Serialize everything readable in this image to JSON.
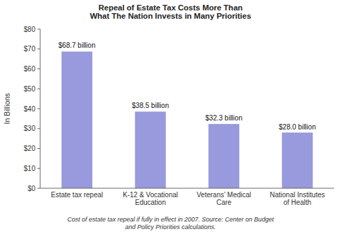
{
  "chart_data": {
    "type": "bar",
    "title": "Repeal of Estate Tax Costs More Than\nWhat The Nation Invests in Many Priorities",
    "categories": [
      "Estate tax repeal",
      "K-12 & Vocational\nEducation",
      "Veterans’ Medical\nCare",
      "National Institutes\nof Health"
    ],
    "values": [
      68.7,
      38.5,
      32.3,
      28.0
    ],
    "value_labels": [
      "$68.7 billion",
      "$38.5 billion",
      "$32.3 billion",
      "$28.0 billion"
    ],
    "data_labels": true,
    "color": "#9999dd",
    "ylabel": "In Billions",
    "ylim": [
      0,
      80
    ],
    "yticks": [
      {
        "value": 0,
        "label": "$0"
      },
      {
        "value": 10,
        "label": "$10"
      },
      {
        "value": 20,
        "label": "$20"
      },
      {
        "value": 30,
        "label": "$30"
      },
      {
        "value": 40,
        "label": "$40"
      },
      {
        "value": 50,
        "label": "$50"
      },
      {
        "value": 60,
        "label": "$60"
      },
      {
        "value": 70,
        "label": "$70"
      },
      {
        "value": 80,
        "label": "$80"
      }
    ],
    "grid": false,
    "footnote": "Cost of estate tax repeal if fully in effect in 2007. Source: Center on Budget\nand Policy Priorities calculations."
  }
}
